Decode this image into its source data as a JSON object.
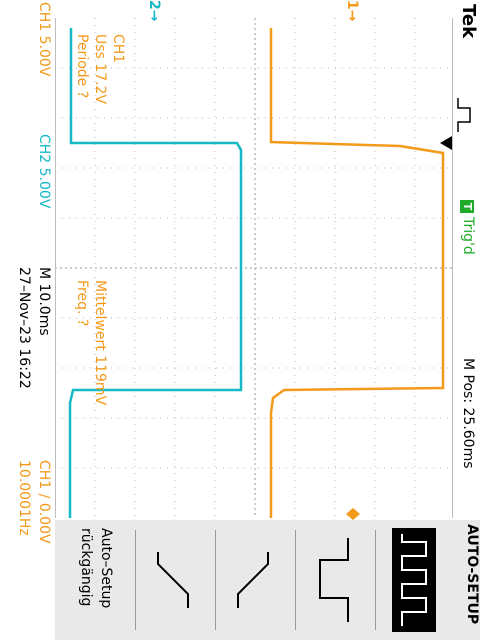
{
  "brand": "Tek",
  "trigger": {
    "status_box": "T",
    "status_label": "Trig'd"
  },
  "horizontal": {
    "position": "M Pos: 25.60ms",
    "main": "M 10.0ms"
  },
  "channels": {
    "ch1": {
      "scale": "CH1  5.00V",
      "color": "#f39a1a"
    },
    "ch2": {
      "scale": "CH2  5.00V",
      "color": "#15b9c6"
    }
  },
  "measure_ch1": {
    "title": "CH1",
    "uss": "Uss 17.2V",
    "period": "Periode ?",
    "mean": "Mittelwert 119mV",
    "freq": "Freq. ?"
  },
  "markers": {
    "ch2": "2→",
    "ch1": "1→"
  },
  "footer": {
    "datetime": "27–Nov–23 16:22",
    "trigger_setting": "CH1  ∕  0.00V",
    "trigger_freq": "10.0001Hz"
  },
  "menu": {
    "title": "AUTO-SETUP",
    "undo_line1": "Auto–Setup",
    "undo_line2": "rückgängig",
    "icons": [
      "multi-cycle-icon",
      "single-cycle-icon",
      "rising-edge-icon",
      "falling-edge-icon"
    ]
  }
}
